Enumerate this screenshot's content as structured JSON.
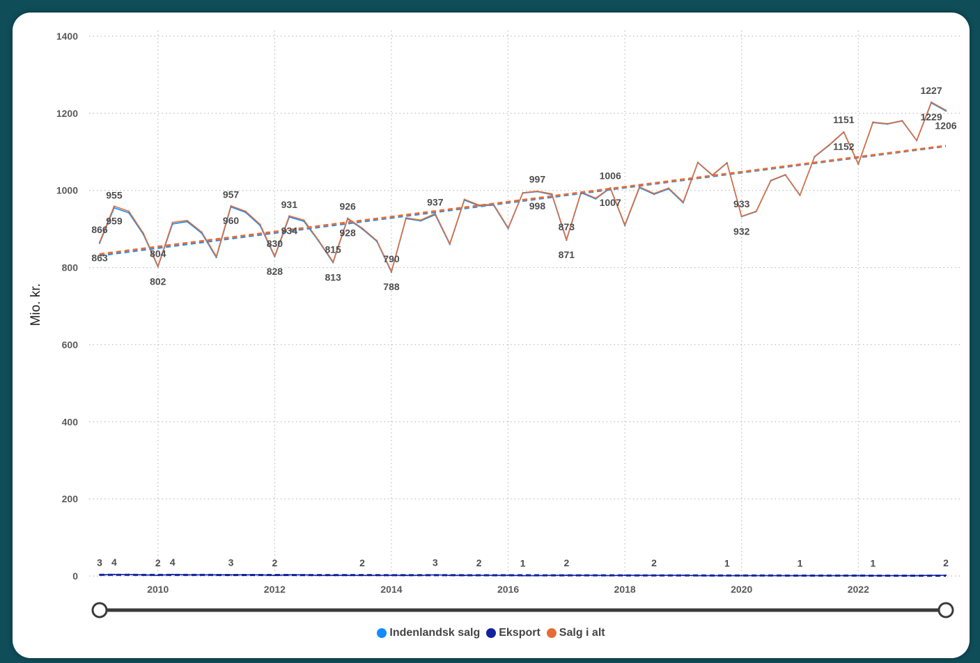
{
  "chart_data": {
    "type": "line",
    "ylabel": "Mio. kr.",
    "ylim": [
      0,
      1400
    ],
    "yticks": [
      0,
      200,
      400,
      600,
      800,
      1000,
      1200,
      1400
    ],
    "xlim": [
      "2009Q1",
      "2023Q3"
    ],
    "xticks": [
      "2010",
      "2012",
      "2014",
      "2016",
      "2018",
      "2020",
      "2022"
    ],
    "grid": true,
    "legend_position": "bottom",
    "x": [
      "2009Q1",
      "2009Q2",
      "2009Q3",
      "2009Q4",
      "2010Q1",
      "2010Q2",
      "2010Q3",
      "2010Q4",
      "2011Q1",
      "2011Q2",
      "2011Q3",
      "2011Q4",
      "2012Q1",
      "2012Q2",
      "2012Q3",
      "2012Q4",
      "2013Q1",
      "2013Q2",
      "2013Q3",
      "2013Q4",
      "2014Q1",
      "2014Q2",
      "2014Q3",
      "2014Q4",
      "2015Q1",
      "2015Q2",
      "2015Q3",
      "2015Q4",
      "2016Q1",
      "2016Q2",
      "2016Q3",
      "2016Q4",
      "2017Q1",
      "2017Q2",
      "2017Q3",
      "2017Q4",
      "2018Q1",
      "2018Q2",
      "2018Q3",
      "2018Q4",
      "2019Q1",
      "2019Q2",
      "2019Q3",
      "2019Q4",
      "2020Q1",
      "2020Q2",
      "2020Q3",
      "2020Q4",
      "2021Q1",
      "2021Q2",
      "2021Q3",
      "2021Q4",
      "2022Q1",
      "2022Q2",
      "2022Q3",
      "2022Q4",
      "2023Q1",
      "2023Q2",
      "2023Q3"
    ],
    "series": [
      {
        "name": "Indenlandsk salg",
        "color": "#118DFF",
        "trendline": "linear",
        "values": [
          863,
          955,
          942,
          886,
          802,
          913,
          919,
          889,
          826,
          957,
          943,
          909,
          828,
          931,
          920,
          869,
          813,
          926,
          900,
          868,
          788,
          927,
          921,
          937,
          860,
          975,
          960,
          962,
          901,
          993,
          997,
          989,
          871,
          994,
          978,
          1006,
          909,
          1007,
          990,
          1004,
          968,
          1072,
          1039,
          1071,
          932,
          945,
          1025,
          1040,
          987,
          1087,
          1117,
          1151,
          1068,
          1176,
          1172,
          1180,
          1129,
          1227,
          1206
        ],
        "labeled_x": [
          "2009Q1",
          "2009Q2",
          "2010Q1",
          "2011Q2",
          "2012Q1",
          "2012Q2",
          "2013Q1",
          "2013Q2",
          "2014Q1",
          "2014Q4",
          "2016Q3",
          "2017Q1",
          "2017Q4",
          "2020Q1",
          "2021Q4",
          "2023Q2",
          "2023Q3"
        ]
      },
      {
        "name": "Eksport",
        "color": "#12239E",
        "trendline": "linear",
        "values": [
          3,
          4,
          4,
          3,
          2,
          4,
          3,
          3,
          3,
          3,
          3,
          3,
          2,
          3,
          3,
          2,
          2,
          2,
          2,
          2,
          2,
          2,
          2,
          3,
          2,
          2,
          2,
          2,
          2,
          1,
          1,
          2,
          2,
          2,
          2,
          1,
          2,
          2,
          2,
          2,
          2,
          1,
          1,
          1,
          1,
          1,
          1,
          1,
          1,
          1,
          1,
          1,
          1,
          1,
          1,
          1,
          1,
          2,
          2
        ],
        "labeled_x": [
          "2009Q1",
          "2009Q2",
          "2010Q1",
          "2010Q2",
          "2011Q2",
          "2012Q1",
          "2013Q3",
          "2014Q4",
          "2015Q3",
          "2016Q2",
          "2017Q1",
          "2018Q3",
          "2019Q4",
          "2021Q1",
          "2022Q2",
          "2023Q3"
        ]
      },
      {
        "name": "Salg i alt",
        "color": "#E66C37",
        "trendline": "linear",
        "values": [
          866,
          959,
          946,
          889,
          804,
          917,
          922,
          892,
          829,
          960,
          946,
          912,
          830,
          934,
          923,
          871,
          815,
          928,
          902,
          870,
          790,
          929,
          923,
          940,
          862,
          977,
          962,
          964,
          903,
          994,
          998,
          991,
          873,
          996,
          980,
          1007,
          911,
          1009,
          992,
          1006,
          970,
          1073,
          1040,
          1072,
          933,
          946,
          1026,
          1041,
          988,
          1088,
          1118,
          1152,
          1069,
          1177,
          1173,
          1181,
          1130,
          1229,
          1208
        ],
        "labeled_x": [
          "2009Q1",
          "2009Q2",
          "2010Q1",
          "2011Q2",
          "2012Q1",
          "2012Q2",
          "2013Q1",
          "2013Q2",
          "2014Q1",
          "2016Q3",
          "2017Q1",
          "2017Q4",
          "2020Q1",
          "2021Q4",
          "2023Q2"
        ]
      }
    ]
  },
  "range_slider": {
    "from": "2009Q1",
    "to": "2023Q3"
  }
}
